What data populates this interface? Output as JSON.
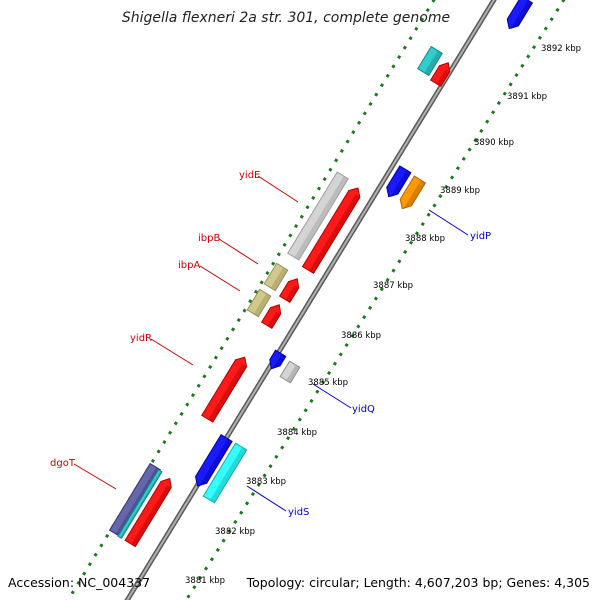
{
  "title": "Shigella flexneri 2a str. 301, complete genome",
  "footer": {
    "accession": "Accession: NC_004337",
    "topology": "Topology: circular; Length: 4,607,203 bp; Genes: 4,305"
  },
  "colors": {
    "backbone": "#888888",
    "ticks": "#1a7a1a",
    "forward_label": "#cc0000",
    "reverse_label": "#0000cc"
  },
  "scale_labels": [
    {
      "kbp": 3881,
      "text": "3881 kbp"
    },
    {
      "kbp": 3882,
      "text": "3882 kbp"
    },
    {
      "kbp": 3883,
      "text": "3883 kbp"
    },
    {
      "kbp": 3884,
      "text": "3884 kbp"
    },
    {
      "kbp": 3885,
      "text": "3885 kbp"
    },
    {
      "kbp": 3886,
      "text": "3886 kbp"
    },
    {
      "kbp": 3887,
      "text": "3887 kbp"
    },
    {
      "kbp": 3888,
      "text": "3888 kbp"
    },
    {
      "kbp": 3889,
      "text": "3889 kbp"
    },
    {
      "kbp": 3890,
      "text": "3890 kbp"
    },
    {
      "kbp": 3891,
      "text": "3891 kbp"
    },
    {
      "kbp": 3892,
      "text": "3892 kbp"
    }
  ],
  "gene_labels": [
    {
      "name": "yidE",
      "strand": "forward"
    },
    {
      "name": "ibpB",
      "strand": "forward"
    },
    {
      "name": "ibpA",
      "strand": "forward"
    },
    {
      "name": "yidR",
      "strand": "forward"
    },
    {
      "name": "dgoT",
      "strand": "forward"
    },
    {
      "name": "yidP",
      "strand": "reverse"
    },
    {
      "name": "yidQ",
      "strand": "reverse"
    },
    {
      "name": "yidS",
      "strand": "reverse"
    }
  ]
}
